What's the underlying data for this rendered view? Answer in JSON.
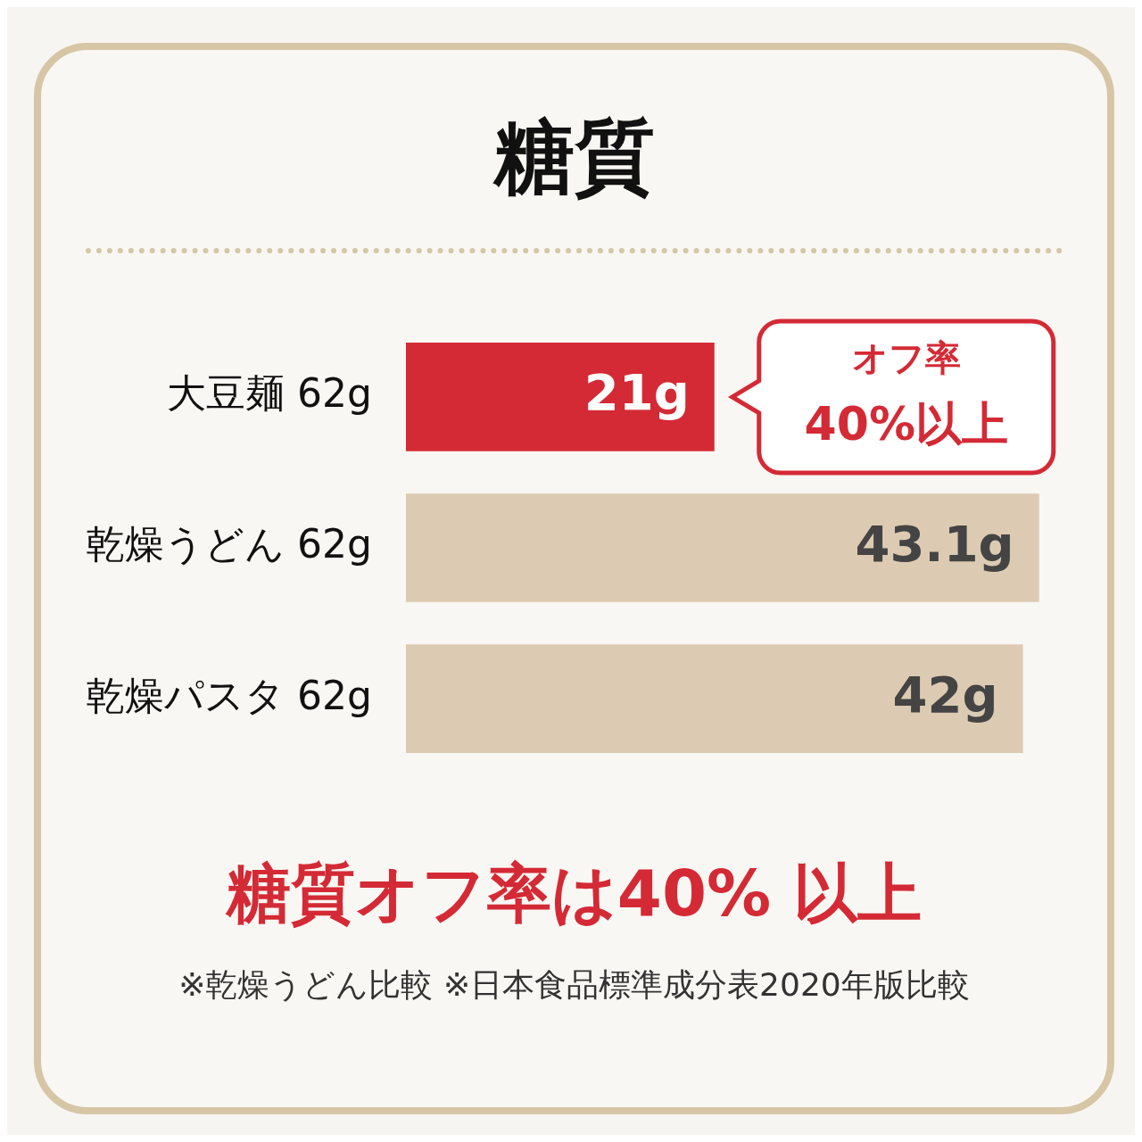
{
  "chart_data": {
    "type": "bar",
    "orientation": "horizontal",
    "title": "糖質",
    "categories": [
      "大豆麺 62g",
      "乾燥うどん 62g",
      "乾燥パスタ 62g"
    ],
    "values": [
      21,
      43.1,
      42
    ],
    "colors": [
      "#d42a35",
      "#dccbb2",
      "#dccbb2"
    ],
    "value_labels": [
      "21g",
      "43.1g",
      "42g"
    ],
    "annotations": [
      "オフ率\n40%以上",
      "糖質オフ率は40% 以上",
      "※乾燥うどん比較 ※日本食品標準成分表2020年版比較"
    ]
  }
}
